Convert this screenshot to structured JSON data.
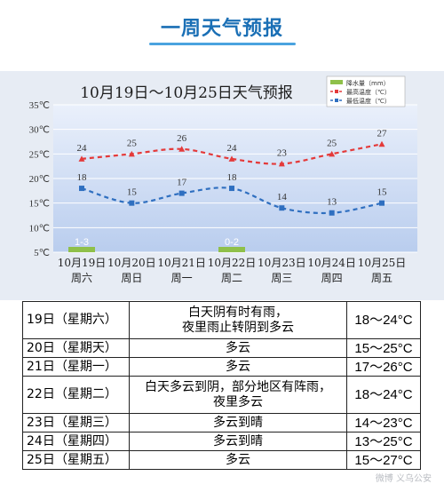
{
  "header": {
    "title": "一周天气预报"
  },
  "chart_data": {
    "type": "line",
    "title": "10月19日～10月25日天气预报",
    "ylim": [
      5,
      35
    ],
    "y_ticks": [
      "35℃",
      "30℃",
      "25℃",
      "20℃",
      "15℃",
      "10℃",
      "5℃"
    ],
    "categories": [
      {
        "date": "10月19日",
        "weekday": "周六"
      },
      {
        "date": "10月20日",
        "weekday": "周日"
      },
      {
        "date": "10月21日",
        "weekday": "周一"
      },
      {
        "date": "10月22日",
        "weekday": "周二"
      },
      {
        "date": "10月23日",
        "weekday": "周三"
      },
      {
        "date": "10月24日",
        "weekday": "周四"
      },
      {
        "date": "10月25日",
        "weekday": "周五"
      }
    ],
    "legend": {
      "placement": "top-right",
      "items": [
        {
          "label": "降水量（mm）",
          "color": "#8fc04a"
        },
        {
          "label": "最高温度（℃）",
          "color": "#e43a3a"
        },
        {
          "label": "最低温度（℃）",
          "color": "#2f6fc0"
        }
      ]
    },
    "series": [
      {
        "key": "high",
        "color": "#e43a3a",
        "values": [
          24,
          25,
          26,
          24,
          23,
          25,
          27
        ]
      },
      {
        "key": "low",
        "color": "#2f6fc0",
        "values": [
          18,
          15,
          17,
          18,
          14,
          13,
          15
        ]
      }
    ],
    "precipitation": [
      {
        "index": 0,
        "label": "1-3",
        "value": 2
      },
      {
        "index": 3,
        "label": "0-2",
        "value": 1
      }
    ],
    "grid": true,
    "background_color": "#c9d9f2"
  },
  "table": {
    "rows": [
      {
        "date": "19日（星期六）",
        "condition": "白天阴有时有雨，\n夜里雨止转阴到多云",
        "temp": "18～24°C"
      },
      {
        "date": "20日（星期天）",
        "condition": "多云",
        "temp": "15～25°C"
      },
      {
        "date": "21日（星期一）",
        "condition": "多云",
        "temp": "17～26°C"
      },
      {
        "date": "22日（星期二）",
        "condition": "白天多云到阴，部分地区有阵雨，\n夜里多云",
        "temp": "18～24°C"
      },
      {
        "date": "23日（星期三）",
        "condition": "多云到晴",
        "temp": "14～23°C"
      },
      {
        "date": "24日（星期四）",
        "condition": "多云到晴",
        "temp": "13～25°C"
      },
      {
        "date": "25日（星期五）",
        "condition": "多云",
        "temp": "15～27°C"
      }
    ]
  },
  "watermark": "微博 义乌公安"
}
